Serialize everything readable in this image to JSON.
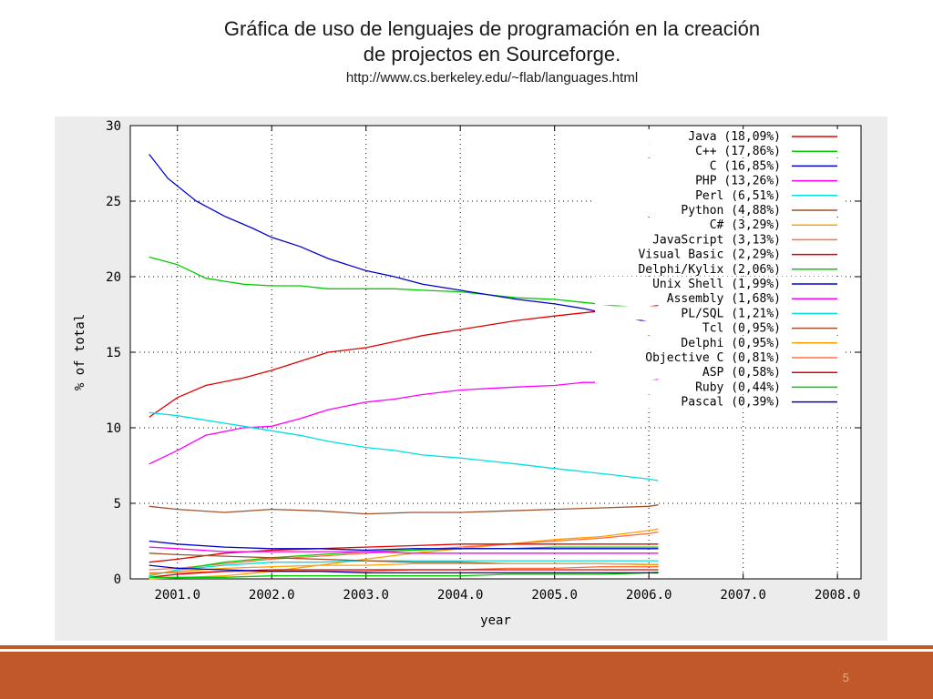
{
  "slide": {
    "title_line1": "Gráfica de uso de lenguajes de programación  en la creación",
    "title_line2": "de projectos en Sourceforge.",
    "source_url": "http://www.cs.berkeley.edu/~flab/languages.html",
    "page_number": "5"
  },
  "colors": {
    "footer": "#c0582a",
    "panel": "#ececec"
  },
  "chart_data": {
    "type": "line",
    "title": "",
    "xlabel": "year",
    "ylabel": "% of total",
    "xlim": [
      2000.5,
      2008.25
    ],
    "ylim": [
      0,
      30
    ],
    "xticks": [
      2001,
      2002,
      2003,
      2004,
      2005,
      2006,
      2007,
      2008
    ],
    "xtick_labels": [
      "2001.0",
      "2002.0",
      "2003.0",
      "2004.0",
      "2005.0",
      "2006.0",
      "2007.0",
      "2008.0"
    ],
    "yticks": [
      0,
      5,
      10,
      15,
      20,
      25,
      30
    ],
    "ytick_labels": [
      "0",
      "5",
      "10",
      "15",
      "20",
      "25",
      "30"
    ],
    "grid": true,
    "legend_position": "top-right",
    "series": [
      {
        "name": "Java (18,09%)",
        "color": "#e00000",
        "x": [
          2000.7,
          2001.0,
          2001.3,
          2001.7,
          2002.0,
          2002.3,
          2002.6,
          2003.0,
          2003.3,
          2003.6,
          2004.0,
          2004.3,
          2004.6,
          2005.0,
          2005.3,
          2005.6,
          2006.0,
          2006.1
        ],
        "y": [
          10.7,
          12.0,
          12.8,
          13.3,
          13.8,
          14.4,
          15.0,
          15.3,
          15.7,
          16.1,
          16.5,
          16.8,
          17.1,
          17.4,
          17.6,
          17.8,
          18.0,
          18.1
        ]
      },
      {
        "name": "C++ (17,86%)",
        "color": "#00cc00",
        "x": [
          2000.7,
          2001.0,
          2001.3,
          2001.7,
          2002.0,
          2002.3,
          2002.6,
          2003.0,
          2003.3,
          2003.6,
          2004.0,
          2004.3,
          2004.6,
          2005.0,
          2005.3,
          2005.6,
          2006.0,
          2006.1
        ],
        "y": [
          21.3,
          20.8,
          19.9,
          19.5,
          19.4,
          19.4,
          19.2,
          19.2,
          19.2,
          19.1,
          19.0,
          18.8,
          18.6,
          18.5,
          18.3,
          18.1,
          17.9,
          17.9
        ]
      },
      {
        "name": "C (16,85%)",
        "color": "#0000cc",
        "x": [
          2000.7,
          2000.9,
          2001.2,
          2001.5,
          2001.8,
          2002.0,
          2002.3,
          2002.6,
          2003.0,
          2003.3,
          2003.6,
          2004.0,
          2004.3,
          2004.6,
          2005.0,
          2005.3,
          2005.6,
          2006.0,
          2006.1
        ],
        "y": [
          28.1,
          26.5,
          25.0,
          24.0,
          23.2,
          22.6,
          22.0,
          21.2,
          20.4,
          20.0,
          19.5,
          19.1,
          18.8,
          18.5,
          18.2,
          17.9,
          17.5,
          17.0,
          16.8
        ]
      },
      {
        "name": "PHP (13,26%)",
        "color": "#ff00ff",
        "x": [
          2000.7,
          2001.0,
          2001.3,
          2001.7,
          2002.0,
          2002.3,
          2002.6,
          2003.0,
          2003.3,
          2003.6,
          2004.0,
          2004.3,
          2004.6,
          2005.0,
          2005.3,
          2005.6,
          2006.0,
          2006.1
        ],
        "y": [
          7.6,
          8.5,
          9.5,
          10.0,
          10.1,
          10.6,
          11.2,
          11.7,
          11.9,
          12.2,
          12.5,
          12.6,
          12.7,
          12.8,
          13.0,
          13.0,
          13.1,
          13.2
        ]
      },
      {
        "name": "Perl (6,51%)",
        "color": "#00e0e0",
        "x": [
          2000.7,
          2001.0,
          2001.3,
          2001.7,
          2002.0,
          2002.3,
          2002.6,
          2003.0,
          2003.3,
          2003.6,
          2004.0,
          2004.3,
          2004.6,
          2005.0,
          2005.3,
          2005.6,
          2006.0,
          2006.1
        ],
        "y": [
          11.0,
          10.8,
          10.5,
          10.1,
          9.8,
          9.5,
          9.1,
          8.7,
          8.5,
          8.2,
          8.0,
          7.8,
          7.6,
          7.3,
          7.1,
          6.9,
          6.6,
          6.5
        ]
      },
      {
        "name": "Python (4,88%)",
        "color": "#a0522d",
        "x": [
          2000.7,
          2001.0,
          2001.5,
          2002.0,
          2002.5,
          2003.0,
          2003.5,
          2004.0,
          2004.5,
          2005.0,
          2005.5,
          2006.0,
          2006.1
        ],
        "y": [
          4.8,
          4.6,
          4.4,
          4.6,
          4.5,
          4.3,
          4.4,
          4.4,
          4.5,
          4.6,
          4.7,
          4.8,
          4.9
        ]
      },
      {
        "name": "C# (3,29%)",
        "color": "#ffa000",
        "x": [
          2000.7,
          2001.5,
          2002.0,
          2002.5,
          2003.0,
          2003.5,
          2004.0,
          2004.5,
          2005.0,
          2005.5,
          2006.0,
          2006.1
        ],
        "y": [
          0.0,
          0.2,
          0.5,
          0.9,
          1.3,
          1.7,
          2.0,
          2.3,
          2.6,
          2.8,
          3.2,
          3.3
        ]
      },
      {
        "name": "JavaScript (3,13%)",
        "color": "#ff7040",
        "x": [
          2000.7,
          2001.0,
          2001.5,
          2002.0,
          2002.5,
          2003.0,
          2003.5,
          2004.0,
          2004.5,
          2005.0,
          2005.5,
          2006.0,
          2006.1
        ],
        "y": [
          0.6,
          0.7,
          1.0,
          1.3,
          1.5,
          1.7,
          1.9,
          2.1,
          2.3,
          2.5,
          2.7,
          3.0,
          3.1
        ]
      },
      {
        "name": "Visual Basic (2,29%)",
        "color": "#e00000",
        "x": [
          2000.7,
          2001.0,
          2001.5,
          2002.0,
          2002.5,
          2003.0,
          2003.5,
          2004.0,
          2004.5,
          2005.0,
          2005.5,
          2006.0,
          2006.1
        ],
        "y": [
          1.1,
          1.3,
          1.7,
          1.9,
          2.0,
          2.1,
          2.2,
          2.3,
          2.3,
          2.3,
          2.3,
          2.3,
          2.3
        ]
      },
      {
        "name": "Delphi/Kylix (2,06%)",
        "color": "#00cc00",
        "x": [
          2000.7,
          2001.0,
          2001.5,
          2002.0,
          2002.5,
          2003.0,
          2003.5,
          2004.0,
          2004.5,
          2005.0,
          2005.5,
          2006.0,
          2006.1
        ],
        "y": [
          0.2,
          0.6,
          1.1,
          1.4,
          1.6,
          1.8,
          1.9,
          2.0,
          2.0,
          2.1,
          2.1,
          2.1,
          2.1
        ]
      },
      {
        "name": "Unix Shell (1,99%)",
        "color": "#0000cc",
        "x": [
          2000.7,
          2001.0,
          2001.5,
          2002.0,
          2002.5,
          2003.0,
          2003.5,
          2004.0,
          2004.5,
          2005.0,
          2005.5,
          2006.0,
          2006.1
        ],
        "y": [
          2.5,
          2.3,
          2.1,
          2.0,
          2.0,
          1.9,
          2.0,
          2.0,
          2.0,
          2.0,
          2.0,
          2.0,
          2.0
        ]
      },
      {
        "name": "Assembly (1,68%)",
        "color": "#ff00ff",
        "x": [
          2000.7,
          2001.0,
          2001.5,
          2002.0,
          2002.5,
          2003.0,
          2003.5,
          2004.0,
          2004.5,
          2005.0,
          2005.5,
          2006.0,
          2006.1
        ],
        "y": [
          2.1,
          2.0,
          1.8,
          1.8,
          1.8,
          1.8,
          1.7,
          1.7,
          1.7,
          1.7,
          1.7,
          1.7,
          1.7
        ]
      },
      {
        "name": "PL/SQL (1,21%)",
        "color": "#00e0e0",
        "x": [
          2000.7,
          2001.0,
          2001.5,
          2002.0,
          2002.5,
          2003.0,
          2003.5,
          2004.0,
          2004.5,
          2005.0,
          2005.5,
          2006.0,
          2006.1
        ],
        "y": [
          0.2,
          0.6,
          0.9,
          1.1,
          1.1,
          1.2,
          1.2,
          1.2,
          1.2,
          1.2,
          1.2,
          1.2,
          1.2
        ]
      },
      {
        "name": "Tcl (0,95%)",
        "color": "#a0522d",
        "x": [
          2000.7,
          2001.0,
          2001.5,
          2002.0,
          2002.5,
          2003.0,
          2003.5,
          2004.0,
          2004.5,
          2005.0,
          2005.5,
          2006.0,
          2006.1
        ],
        "y": [
          1.7,
          1.6,
          1.5,
          1.4,
          1.3,
          1.2,
          1.1,
          1.1,
          1.0,
          1.0,
          1.0,
          0.95,
          0.95
        ]
      },
      {
        "name": "Delphi (0,95%)",
        "color": "#ffa000",
        "x": [
          2000.7,
          2001.0,
          2001.5,
          2002.0,
          2002.5,
          2003.0,
          2003.5,
          2004.0,
          2004.5,
          2005.0,
          2005.5,
          2006.0,
          2006.1
        ],
        "y": [
          0.3,
          0.5,
          0.7,
          0.8,
          0.9,
          0.9,
          1.0,
          1.0,
          1.0,
          1.0,
          1.0,
          0.95,
          0.95
        ]
      },
      {
        "name": "Objective C (0,81%)",
        "color": "#ff7040",
        "x": [
          2000.7,
          2001.0,
          2001.5,
          2002.0,
          2002.5,
          2003.0,
          2003.5,
          2004.0,
          2004.5,
          2005.0,
          2005.5,
          2006.0,
          2006.1
        ],
        "y": [
          0.4,
          0.4,
          0.5,
          0.5,
          0.5,
          0.5,
          0.6,
          0.6,
          0.7,
          0.7,
          0.8,
          0.8,
          0.8
        ]
      },
      {
        "name": "ASP (0,58%)",
        "color": "#e00000",
        "x": [
          2000.7,
          2001.0,
          2001.5,
          2002.0,
          2002.5,
          2003.0,
          2003.5,
          2004.0,
          2004.5,
          2005.0,
          2005.5,
          2006.0,
          2006.1
        ],
        "y": [
          0.1,
          0.3,
          0.5,
          0.6,
          0.6,
          0.6,
          0.6,
          0.6,
          0.6,
          0.6,
          0.6,
          0.6,
          0.6
        ]
      },
      {
        "name": "Ruby (0,44%)",
        "color": "#00cc00",
        "x": [
          2000.7,
          2001.0,
          2001.5,
          2002.0,
          2002.5,
          2003.0,
          2003.5,
          2004.0,
          2004.5,
          2005.0,
          2005.5,
          2006.0,
          2006.1
        ],
        "y": [
          0.1,
          0.1,
          0.1,
          0.2,
          0.2,
          0.2,
          0.2,
          0.2,
          0.3,
          0.3,
          0.3,
          0.4,
          0.44
        ]
      },
      {
        "name": "Pascal (0,39%)",
        "color": "#0000cc",
        "x": [
          2000.7,
          2001.0,
          2001.5,
          2002.0,
          2002.5,
          2003.0,
          2003.5,
          2004.0,
          2004.5,
          2005.0,
          2005.5,
          2006.0,
          2006.1
        ],
        "y": [
          0.9,
          0.7,
          0.6,
          0.5,
          0.5,
          0.4,
          0.4,
          0.4,
          0.4,
          0.4,
          0.4,
          0.4,
          0.39
        ]
      }
    ]
  }
}
